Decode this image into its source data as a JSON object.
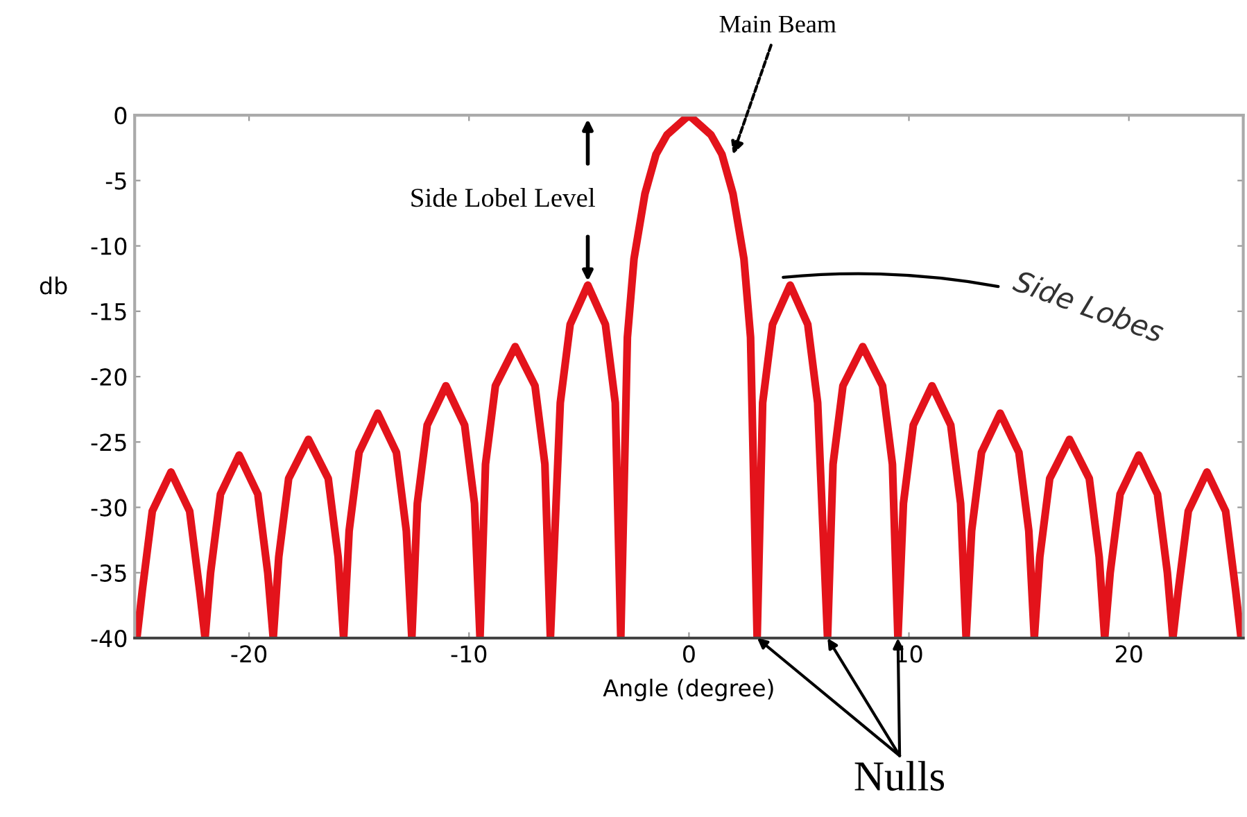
{
  "chart_data": {
    "type": "line",
    "xlabel": "Angle (degree)",
    "ylabel": "db",
    "x": [
      -25.1,
      -24.85,
      -24.4,
      -23.55,
      -22.7,
      -22.25,
      -22.0,
      -21.75,
      -21.3,
      -20.45,
      -19.6,
      -19.15,
      -18.9,
      -18.65,
      -18.2,
      -17.3,
      -16.4,
      -15.95,
      -15.7,
      -15.45,
      -15.0,
      -14.15,
      -13.3,
      -12.85,
      -12.6,
      -12.35,
      -11.9,
      -11.05,
      -10.2,
      -9.75,
      -9.5,
      -9.25,
      -8.8,
      -7.9,
      -7.0,
      -6.55,
      -6.3,
      -5.85,
      -5.4,
      -4.6,
      -3.8,
      -3.35,
      -3.1,
      -2.8,
      -2.5,
      -2.0,
      -1.5,
      -1.0,
      0,
      1.0,
      1.5,
      2.0,
      2.5,
      2.8,
      3.1,
      3.35,
      3.8,
      4.6,
      5.4,
      5.85,
      6.3,
      6.55,
      7.0,
      7.9,
      8.8,
      9.25,
      9.5,
      9.75,
      10.2,
      11.05,
      11.9,
      12.35,
      12.6,
      12.85,
      13.3,
      14.15,
      15.0,
      15.45,
      15.7,
      15.95,
      16.4,
      17.3,
      18.2,
      18.65,
      18.9,
      19.15,
      19.6,
      20.45,
      21.3,
      21.75,
      22.0,
      22.25,
      22.7,
      23.55,
      24.4,
      24.85,
      25.1
    ],
    "series": [
      {
        "color": "#e3131b",
        "values": [
          -40,
          -36.3,
          -30.3,
          -27.3,
          -30.3,
          -36.3,
          -40,
          -35,
          -29,
          -26,
          -29,
          -35,
          -40,
          -33.8,
          -27.8,
          -24.8,
          -27.8,
          -33.8,
          -40,
          -31.8,
          -25.8,
          -22.8,
          -25.8,
          -31.8,
          -40,
          -29.7,
          -23.7,
          -20.7,
          -23.7,
          -29.7,
          -40,
          -26.7,
          -20.7,
          -17.7,
          -20.7,
          -26.7,
          -40,
          -22,
          -16,
          -13,
          -16,
          -22,
          -40,
          -17,
          -11,
          -6,
          -3,
          -1.5,
          0,
          -1.5,
          -3,
          -6,
          -11,
          -17,
          -40,
          -22,
          -16,
          -13,
          -16,
          -22,
          -40,
          -26.7,
          -20.7,
          -17.7,
          -20.7,
          -26.7,
          -40,
          -29.7,
          -23.7,
          -20.7,
          -23.7,
          -29.7,
          -40,
          -31.8,
          -25.8,
          -22.8,
          -25.8,
          -31.8,
          -40,
          -33.8,
          -27.8,
          -24.8,
          -27.8,
          -33.8,
          -40,
          -35,
          -29,
          -26,
          -29,
          -35,
          -40,
          -36.3,
          -30.3,
          -27.3,
          -30.3,
          -36.3,
          -40
        ]
      }
    ],
    "xlim": [
      -25.2,
      25.2
    ],
    "xticks": [
      -20,
      -10,
      0,
      10,
      20
    ],
    "ylim": [
      -40,
      0
    ],
    "yticks": [
      0,
      -5,
      -10,
      -15,
      -20,
      -25,
      -30,
      -35,
      -40
    ],
    "grid": false,
    "legend": false,
    "marker": "none",
    "line_style": "solid",
    "annotations": [
      {
        "text": "Main Beam",
        "x": 2.0,
        "y": -3
      },
      {
        "text": "Side Lobel Level",
        "x": -4.6,
        "y": -13
      },
      "Side Lobes",
      {
        "text": "Nulls",
        "x": 3.1,
        "y": -40
      }
    ]
  }
}
